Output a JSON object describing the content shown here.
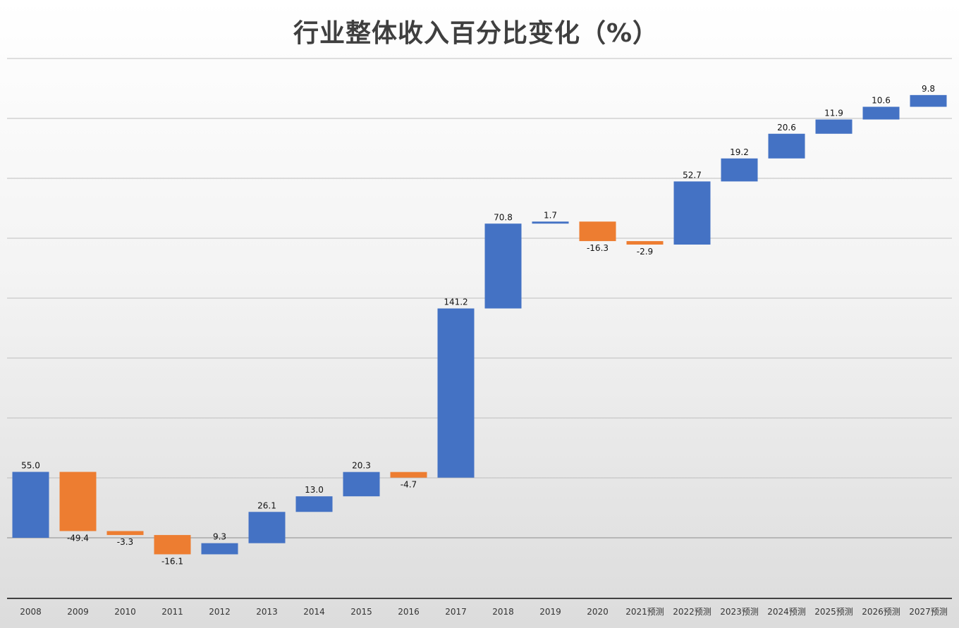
{
  "chart_data": {
    "type": "bar",
    "subtype": "waterfall",
    "title": "行业整体收入百分比变化（%）",
    "xlabel": "",
    "ylabel": "",
    "categories": [
      "2008",
      "2009",
      "2010",
      "2011",
      "2012",
      "2013",
      "2014",
      "2015",
      "2016",
      "2017",
      "2018",
      "2019",
      "2020",
      "2021预测",
      "2022预测",
      "2023预测",
      "2024预测",
      "2025预测",
      "2026预测",
      "2027预测"
    ],
    "values": [
      55.0,
      -49.4,
      -3.3,
      -16.1,
      9.3,
      26.1,
      13.0,
      20.3,
      -4.7,
      141.2,
      70.8,
      1.7,
      -16.3,
      -2.9,
      52.7,
      19.2,
      20.6,
      11.9,
      10.6,
      9.8
    ],
    "labels": [
      "55.0",
      "-49.4",
      "-3.3",
      "-16.1",
      "9.3",
      "26.1",
      "13.0",
      "20.3",
      "-4.7",
      "141.2",
      "70.8",
      "1.7",
      "-16.3",
      "-2.9",
      "52.7",
      "19.2",
      "20.6",
      "11.9",
      "10.6",
      "9.8"
    ],
    "colors": {
      "increase": "#4472c4",
      "decrease": "#ed7d31"
    },
    "grid": true,
    "legend": "none",
    "ylim": [
      -50,
      400
    ],
    "y_axis_labels_shown": false
  }
}
